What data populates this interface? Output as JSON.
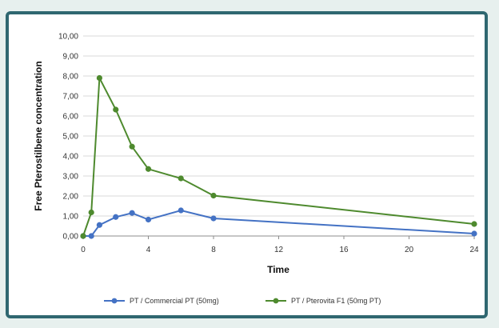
{
  "chart_data": {
    "type": "line",
    "xlabel": "Time",
    "ylabel": "Free Pterostilbene concentration",
    "xlim": [
      0,
      24
    ],
    "ylim": [
      0,
      10
    ],
    "x_ticks": [
      "0",
      "4",
      "8",
      "12",
      "16",
      "20",
      "24"
    ],
    "y_ticks": [
      "0,00",
      "1,00",
      "2,00",
      "3,00",
      "4,00",
      "5,00",
      "6,00",
      "7,00",
      "8,00",
      "9,00",
      "10,00"
    ],
    "grid": true,
    "legend_position": "bottom",
    "series": [
      {
        "name": "PT  / Commercial PT (50mg)",
        "color": "#4472c4",
        "x": [
          0,
          0.5,
          1,
          2,
          3,
          4,
          6,
          8,
          24
        ],
        "y": [
          0.0,
          0.0,
          0.55,
          0.95,
          1.15,
          0.82,
          1.28,
          0.88,
          0.12
        ]
      },
      {
        "name": "PT  / Pterovita F1 (50mg PT)",
        "color": "#4e8a2e",
        "x": [
          0,
          0.5,
          1,
          2,
          3,
          4,
          6,
          8,
          24
        ],
        "y": [
          0.0,
          1.18,
          7.9,
          6.32,
          4.47,
          3.35,
          2.88,
          2.02,
          0.6
        ]
      }
    ]
  }
}
